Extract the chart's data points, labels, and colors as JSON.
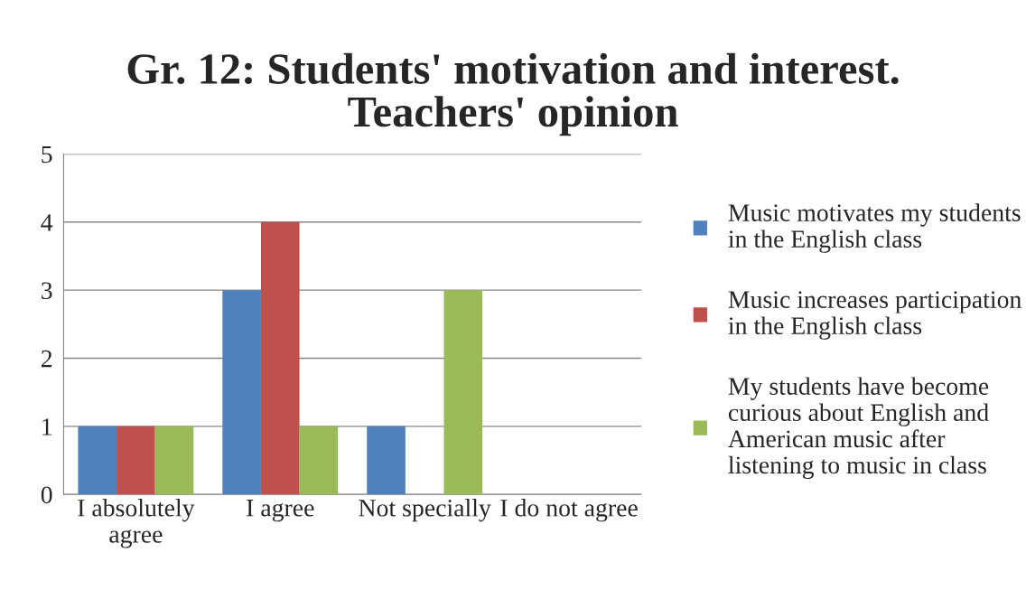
{
  "chart_data": {
    "type": "bar",
    "title": "Gr. 12: Students' motivation and interest. Teachers' opinion",
    "categories": [
      "I absolutely agree",
      "I agree",
      "Not specially",
      "I do not agree"
    ],
    "series": [
      {
        "name": "Music motivates my students in the English class",
        "color": "#4f81bd",
        "values": [
          1,
          3,
          1,
          0
        ]
      },
      {
        "name": "Music increases participation in the English class",
        "color": "#c0504d",
        "values": [
          1,
          4,
          0,
          0
        ]
      },
      {
        "name": "My students have become curious about English and American music after listening to music in class",
        "color": "#9bbb59",
        "values": [
          1,
          1,
          3,
          0
        ]
      }
    ],
    "ylim": [
      0,
      5
    ],
    "yticks": [
      0,
      1,
      2,
      3,
      4,
      5
    ],
    "grid": "y",
    "legend": "right"
  }
}
